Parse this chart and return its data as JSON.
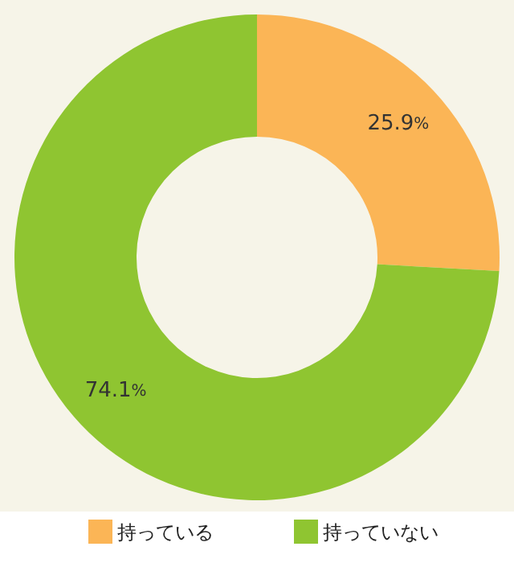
{
  "chart_data": {
    "type": "donut",
    "categories": [
      "持っている",
      "持っていない"
    ],
    "values": [
      25.9,
      74.1
    ],
    "colors": [
      "#fbb556",
      "#8fc531"
    ],
    "value_labels": [
      "25.9%",
      "74.1%"
    ],
    "legend": "bottom"
  }
}
